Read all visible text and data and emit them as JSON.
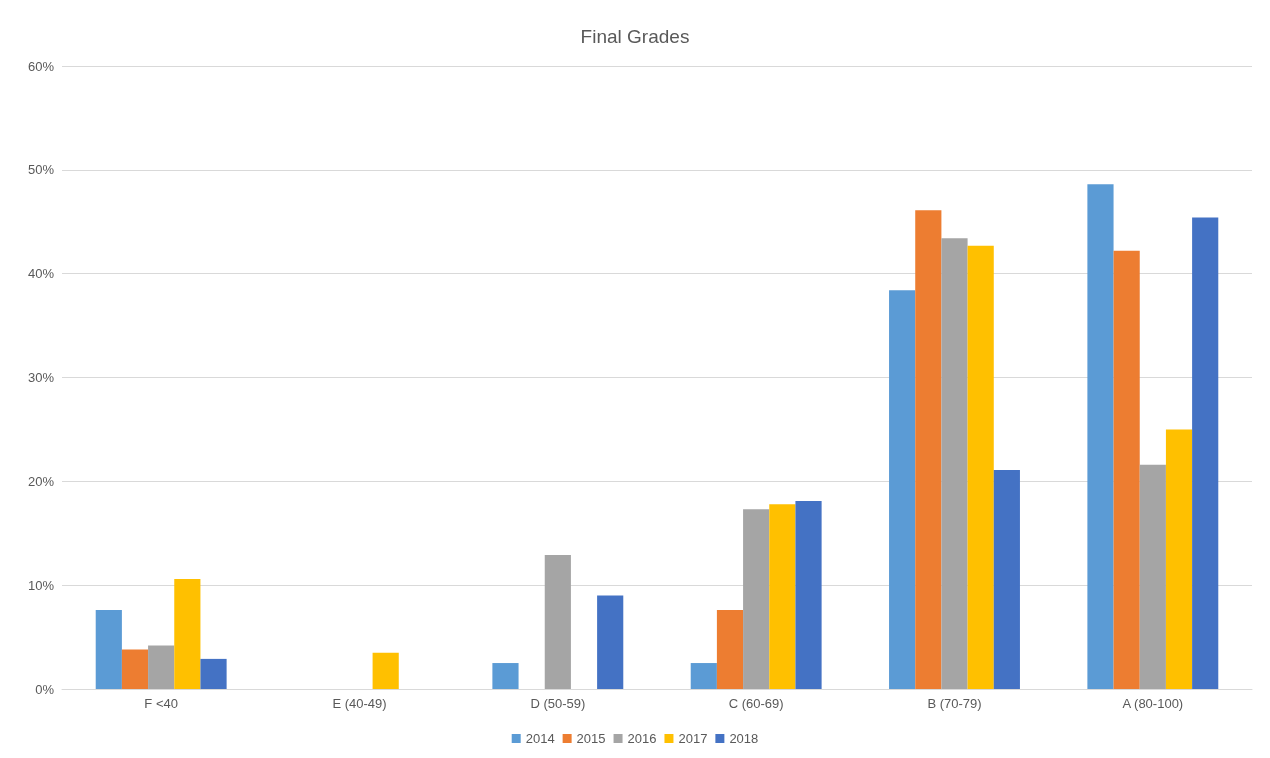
{
  "chart_data": {
    "type": "bar",
    "title": "Final Grades",
    "categories": [
      "F <40",
      "E (40-49)",
      "D (50-59)",
      "C (60-69)",
      "B (70-79)",
      "A (80-100)"
    ],
    "series": [
      {
        "name": "2014",
        "color": "#5b9bd5",
        "values": [
          7.6,
          0,
          2.5,
          2.5,
          38.4,
          48.6
        ]
      },
      {
        "name": "2015",
        "color": "#ed7d31",
        "values": [
          3.8,
          0,
          0,
          7.6,
          46.1,
          42.2
        ]
      },
      {
        "name": "2016",
        "color": "#a5a5a5",
        "values": [
          4.2,
          0,
          12.9,
          17.3,
          43.4,
          21.6
        ]
      },
      {
        "name": "2017",
        "color": "#ffc000",
        "values": [
          10.6,
          3.5,
          0,
          17.8,
          42.7,
          25.0
        ]
      },
      {
        "name": "2018",
        "color": "#4472c4",
        "values": [
          2.9,
          0,
          9.0,
          18.1,
          21.1,
          45.4
        ]
      }
    ],
    "ylim": [
      0,
      60
    ],
    "yticks": [
      {
        "value": 0,
        "label": "0%"
      },
      {
        "value": 10,
        "label": "10%"
      },
      {
        "value": 20,
        "label": "20%"
      },
      {
        "value": 30,
        "label": "30%"
      },
      {
        "value": 40,
        "label": "40%"
      },
      {
        "value": 50,
        "label": "50%"
      },
      {
        "value": 60,
        "label": "60%"
      }
    ],
    "grid": "y",
    "legend": "bottom"
  }
}
